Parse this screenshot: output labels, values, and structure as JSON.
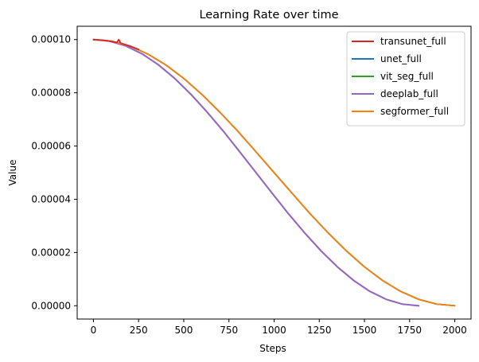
{
  "chart_data": {
    "type": "line",
    "title": "Learning Rate over time",
    "xlabel": "Steps",
    "ylabel": "Value",
    "xlim": [
      -90,
      2090
    ],
    "ylim": [
      -5e-06,
      0.000105
    ],
    "xticks": [
      0,
      250,
      500,
      750,
      1000,
      1250,
      1500,
      1750,
      2000
    ],
    "xtick_labels": [
      "0",
      "250",
      "500",
      "750",
      "1000",
      "1250",
      "1500",
      "1750",
      "2000"
    ],
    "yticks": [
      0.0,
      2e-05,
      4e-05,
      6e-05,
      8e-05,
      0.0001
    ],
    "ytick_labels": [
      "0.00000",
      "0.00002",
      "0.00004",
      "0.00006",
      "0.00008",
      "0.00010"
    ],
    "grid": false,
    "legend_position": "top-right",
    "series": [
      {
        "name": "transunet_full",
        "color": "#d62728",
        "x": [
          0,
          50,
          100,
          130,
          140,
          150,
          200,
          250
        ],
        "y": [
          0.0001,
          9.98e-05,
          9.93e-05,
          9.89e-05,
          0.0001,
          9.87e-05,
          9.76e-05,
          9.63e-05
        ]
      },
      {
        "name": "unet_full",
        "color": "#1f77b4",
        "x": [
          0,
          100,
          200,
          300,
          400,
          500,
          600,
          700,
          800,
          900,
          1000,
          1100,
          1200,
          1300,
          1400,
          1500,
          1600,
          1700,
          1800,
          1900,
          2000
        ],
        "y": [
          0.0001,
          9.94e-05,
          9.76e-05,
          9.46e-05,
          9.05e-05,
          8.54e-05,
          7.94e-05,
          7.27e-05,
          6.55e-05,
          5.78e-05,
          5e-05,
          4.22e-05,
          3.45e-05,
          2.73e-05,
          2.06e-05,
          1.46e-05,
          9.5e-06,
          5.4e-06,
          2.4e-06,
          6e-07,
          0.0
        ]
      },
      {
        "name": "vit_seg_full",
        "color": "#2ca02c",
        "x": [
          0,
          100,
          200,
          300,
          400,
          500,
          600,
          700,
          800,
          900,
          1000,
          1100,
          1200,
          1300,
          1400,
          1500,
          1600,
          1700,
          1800,
          1900,
          2000
        ],
        "y": [
          0.0001,
          9.94e-05,
          9.76e-05,
          9.46e-05,
          9.05e-05,
          8.54e-05,
          7.94e-05,
          7.27e-05,
          6.55e-05,
          5.78e-05,
          5e-05,
          4.22e-05,
          3.45e-05,
          2.73e-05,
          2.06e-05,
          1.46e-05,
          9.5e-06,
          5.4e-06,
          2.4e-06,
          6e-07,
          0.0
        ]
      },
      {
        "name": "deeplab_full",
        "color": "#9467bd",
        "x": [
          0,
          90,
          180,
          270,
          360,
          450,
          540,
          630,
          720,
          810,
          900,
          990,
          1080,
          1170,
          1260,
          1350,
          1440,
          1530,
          1620,
          1710,
          1800
        ],
        "y": [
          0.0001,
          9.94e-05,
          9.76e-05,
          9.46e-05,
          9.05e-05,
          8.54e-05,
          7.94e-05,
          7.27e-05,
          6.55e-05,
          5.78e-05,
          5e-05,
          4.22e-05,
          3.45e-05,
          2.73e-05,
          2.06e-05,
          1.46e-05,
          9.5e-06,
          5.4e-06,
          2.4e-06,
          6e-07,
          0.0
        ]
      },
      {
        "name": "segformer_full",
        "color": "#ff7f0e",
        "x": [
          0,
          100,
          200,
          300,
          400,
          500,
          600,
          700,
          800,
          900,
          1000,
          1100,
          1200,
          1300,
          1400,
          1500,
          1600,
          1700,
          1800,
          1900,
          2000
        ],
        "y": [
          0.0001,
          9.94e-05,
          9.76e-05,
          9.46e-05,
          9.05e-05,
          8.54e-05,
          7.94e-05,
          7.27e-05,
          6.55e-05,
          5.78e-05,
          5e-05,
          4.22e-05,
          3.45e-05,
          2.73e-05,
          2.06e-05,
          1.46e-05,
          9.5e-06,
          5.4e-06,
          2.4e-06,
          6e-07,
          0.0
        ]
      }
    ]
  }
}
